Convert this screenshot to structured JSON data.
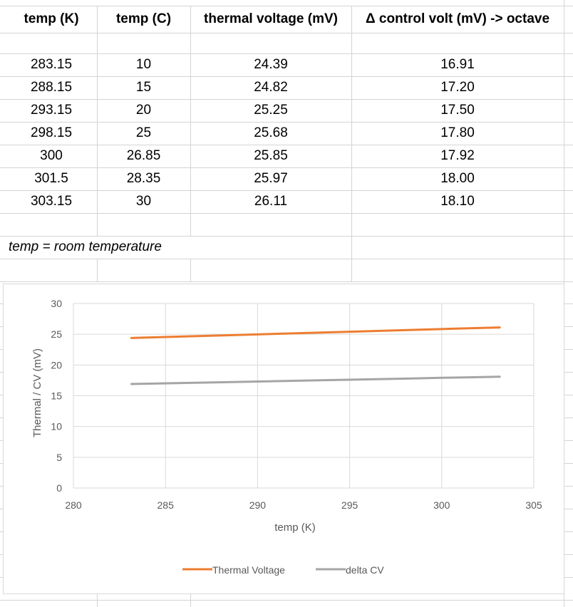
{
  "table": {
    "headers": [
      "temp (K)",
      "temp (C)",
      "thermal voltage (mV)",
      "Δ control volt (mV) -> octave"
    ],
    "rows": [
      [
        "283.15",
        "10",
        "24.39",
        "16.91"
      ],
      [
        "288.15",
        "15",
        "24.82",
        "17.20"
      ],
      [
        "293.15",
        "20",
        "25.25",
        "17.50"
      ],
      [
        "298.15",
        "25",
        "25.68",
        "17.80"
      ],
      [
        "300",
        "26.85",
        "25.85",
        "17.92"
      ],
      [
        "301.5",
        "28.35",
        "25.97",
        "18.00"
      ],
      [
        "303.15",
        "30",
        "26.11",
        "18.10"
      ]
    ],
    "note": "temp = room temperature"
  },
  "chart_data": {
    "type": "line",
    "xlabel": "temp (K)",
    "ylabel": "Thermal / CV (mV)",
    "xlim": [
      280,
      305
    ],
    "ylim": [
      0,
      30
    ],
    "xticks": [
      280,
      285,
      290,
      295,
      300,
      305
    ],
    "yticks": [
      0,
      5,
      10,
      15,
      20,
      25,
      30
    ],
    "grid": true,
    "legend_position": "bottom",
    "x": [
      283.15,
      288.15,
      293.15,
      298.15,
      300,
      301.5,
      303.15
    ],
    "series": [
      {
        "name": "Thermal Voltage",
        "color": "#ed7d31",
        "values": [
          24.39,
          24.82,
          25.25,
          25.68,
          25.85,
          25.97,
          26.11
        ]
      },
      {
        "name": "delta CV",
        "color": "#a5a5a5",
        "values": [
          16.91,
          17.2,
          17.5,
          17.8,
          17.92,
          18.0,
          18.1
        ]
      }
    ]
  }
}
